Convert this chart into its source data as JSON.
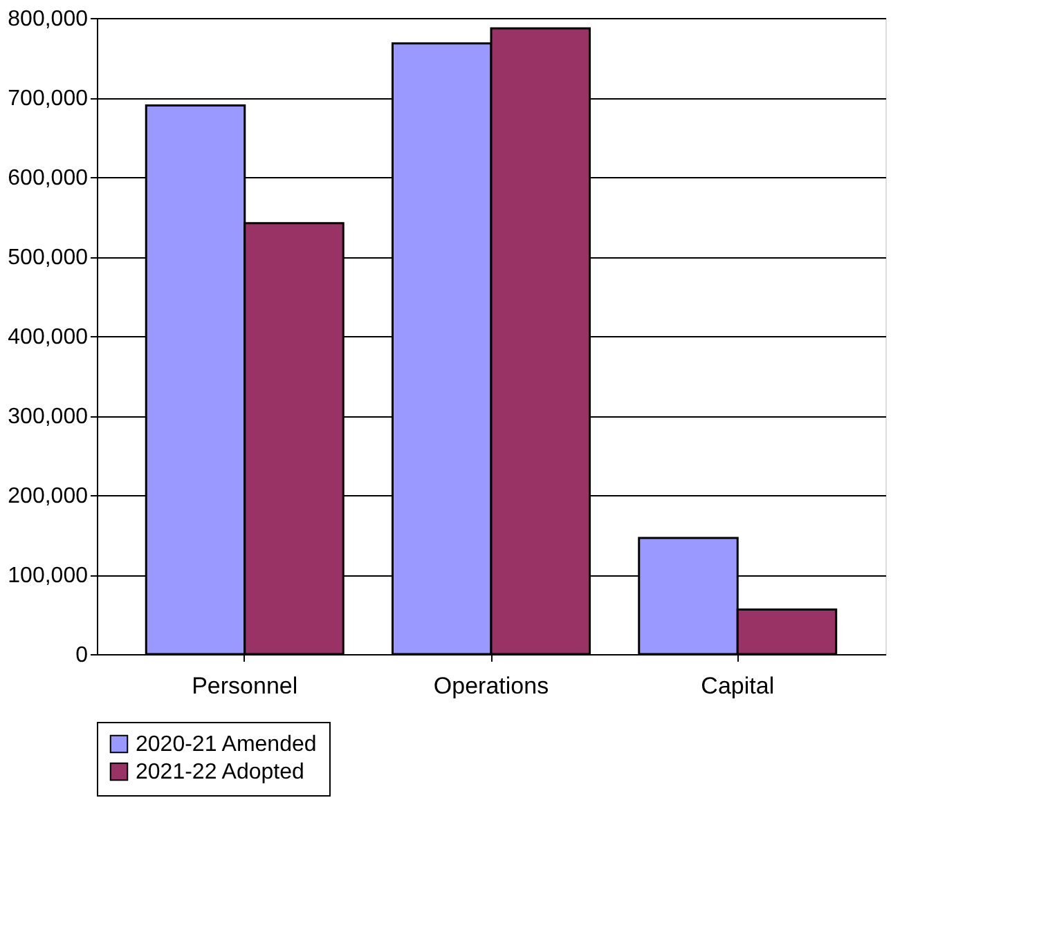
{
  "chart_data": {
    "type": "bar",
    "categories": [
      "Personnel",
      "Operations",
      "Capital"
    ],
    "series": [
      {
        "name": "2020-21 Amended",
        "color": "#9999ff",
        "values": [
          690000,
          768000,
          146000
        ]
      },
      {
        "name": "2021-22 Adopted",
        "color": "#993366",
        "values": [
          542000,
          787000,
          56000
        ]
      }
    ],
    "ylim": [
      0,
      800000
    ],
    "yticks": [
      {
        "value": 0,
        "label": "0"
      },
      {
        "value": 100000,
        "label": "100,000"
      },
      {
        "value": 200000,
        "label": "200,000"
      },
      {
        "value": 300000,
        "label": "300,000"
      },
      {
        "value": 400000,
        "label": "400,000"
      },
      {
        "value": 500000,
        "label": "500,000"
      },
      {
        "value": 600000,
        "label": "600,000"
      },
      {
        "value": 700000,
        "label": "700,000"
      },
      {
        "value": 800000,
        "label": "800,000"
      }
    ],
    "grid": "y",
    "legend": "bottom"
  }
}
